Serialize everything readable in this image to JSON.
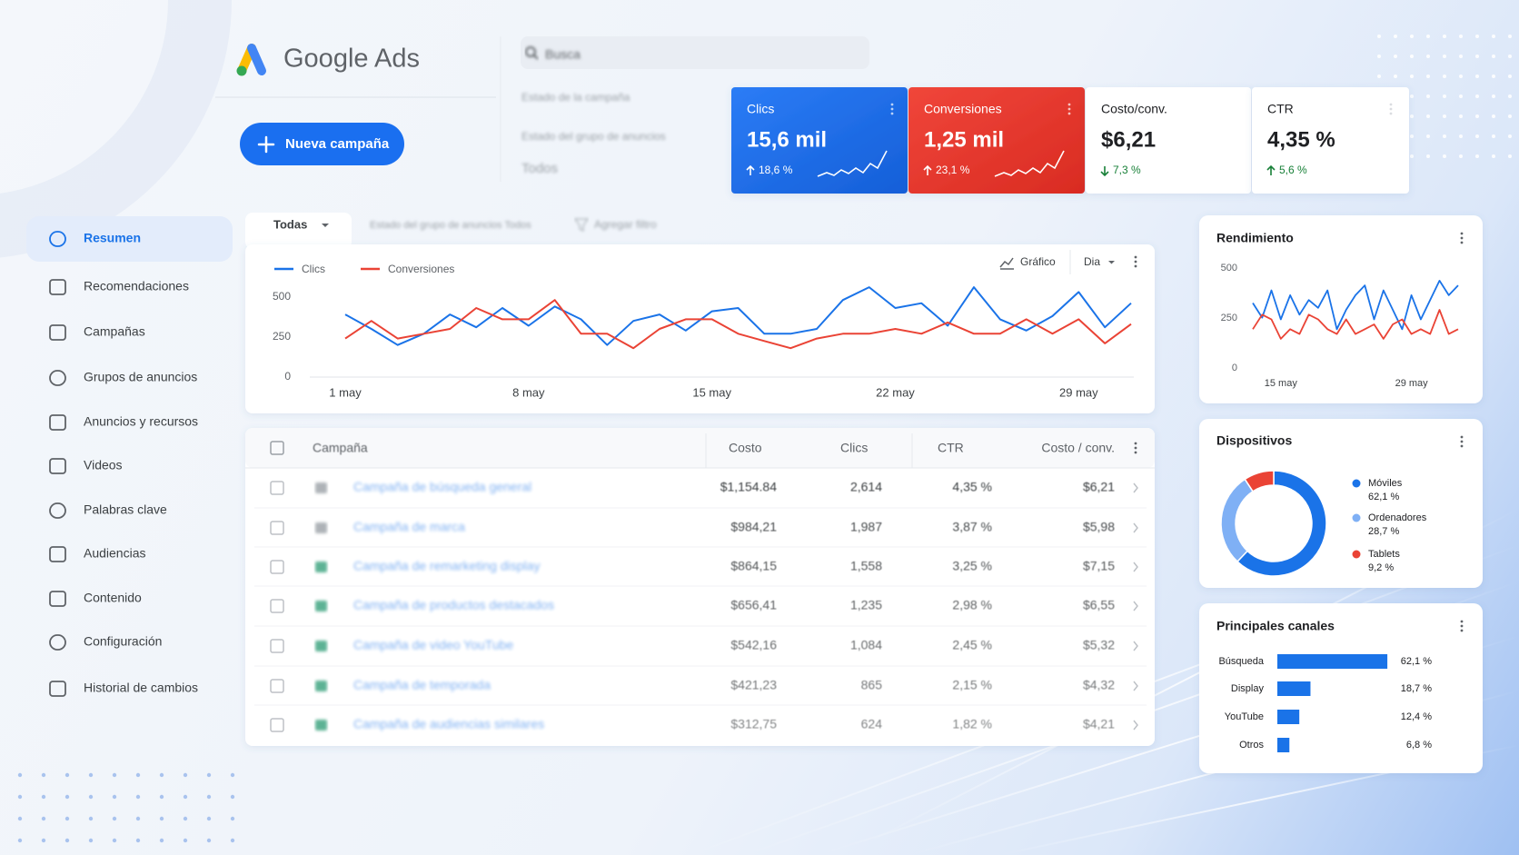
{
  "header": {
    "logo": "Google Ads",
    "search": "Busca",
    "new_campaign": "Nueva campaña"
  },
  "filters": [
    "Estado de la campaña",
    "Estado del grupo de anuncios",
    "Todos"
  ],
  "kpis": [
    {
      "label": "Clics",
      "value": "15,6 mil",
      "change": "18,6 %",
      "direction": "up",
      "color": "#1a6ff0"
    },
    {
      "label": "Conversiones",
      "value": "1,25 mil",
      "change": "23,1 %",
      "direction": "up",
      "color": "#e8382d"
    },
    {
      "label": "Costo/conv.",
      "value": "$6,21",
      "change": "7,3 %",
      "direction": "down",
      "color": "#ffffff"
    },
    {
      "label": "CTR",
      "value": "4,35 %",
      "change": "5,6 %",
      "direction": "up",
      "color": "#ffffff"
    }
  ],
  "nav": {
    "active": 0,
    "items": [
      "Resumen",
      "Recomendaciones",
      "Campañas",
      "Grupos de anuncios",
      "Anuncios y recursos",
      "Videos",
      "Palabras clave",
      "Audiencias",
      "Contenido",
      "Configuración",
      "Historial de cambios"
    ]
  },
  "toolbar": [
    "Todas",
    "Estado del grupo de anuncios Todos",
    "Agregar filtro"
  ],
  "main_chart": {
    "type": "line",
    "controls": [
      "Gráfico",
      "Dia"
    ],
    "categories": [
      "1 may",
      null,
      null,
      null,
      null,
      null,
      null,
      "8 may",
      null,
      null,
      null,
      null,
      null,
      null,
      "15 may",
      null,
      null,
      null,
      null,
      null,
      null,
      "22 may",
      null,
      null,
      null,
      null,
      null,
      null,
      "29 may",
      null,
      null
    ],
    "series": [
      {
        "name": "Clics",
        "color": "#1a73e8",
        "values": [
          390,
          300,
          200,
          270,
          390,
          310,
          430,
          320,
          440,
          360,
          200,
          350,
          390,
          290,
          410,
          430,
          270,
          270,
          300,
          480,
          560,
          430,
          460,
          320,
          560,
          360,
          290,
          380,
          530,
          310,
          460
        ]
      },
      {
        "name": "Conversiones",
        "color": "#ea4335",
        "values": [
          240,
          350,
          240,
          270,
          300,
          430,
          360,
          360,
          480,
          270,
          270,
          180,
          300,
          360,
          360,
          270,
          225,
          180,
          240,
          270,
          270,
          300,
          270,
          340,
          270,
          270,
          360,
          270,
          360,
          210,
          330
        ]
      }
    ],
    "ylim": [
      0,
      600
    ],
    "yticks": [
      0,
      250,
      500
    ]
  },
  "table": {
    "columns": [
      "Campaña",
      "Costo",
      "Clics",
      "CTR",
      "Costo / conv."
    ],
    "rows": [
      [
        "Campaña de búsqueda general",
        "$1,154.84",
        "2,614",
        "4,35 %",
        "$6,21"
      ],
      [
        "Campaña de marca",
        "$984,21",
        "1,987",
        "3,87 %",
        "$5,98"
      ],
      [
        "Campaña de remarketing display",
        "$864,15",
        "1,558",
        "3,25 %",
        "$7,15"
      ],
      [
        "Campaña de productos destacados",
        "$656,41",
        "1,235",
        "2,98 %",
        "$6,55"
      ],
      [
        "Campaña de video YouTube",
        "$542,16",
        "1,084",
        "2,45 %",
        "$5,32"
      ],
      [
        "Campaña de temporada",
        "$421,23",
        "865",
        "2,15 %",
        "$4,32"
      ],
      [
        "Campaña de audiencias similares",
        "$312,75",
        "624",
        "1,82 %",
        "$4,21"
      ]
    ]
  },
  "performance": {
    "title": "Rendimiento",
    "type": "line",
    "categories": [
      null,
      null,
      null,
      "15 may",
      null,
      null,
      null,
      null,
      null,
      null,
      null,
      null,
      null,
      null,
      null,
      null,
      null,
      "29 may",
      null,
      null,
      null,
      null,
      null
    ],
    "series": [
      {
        "color": "#1a73e8",
        "values": [
          325,
          252,
          388,
          243,
          364,
          267,
          340,
          301,
          388,
          194,
          291,
          364,
          413,
          243,
          388,
          291,
          194,
          364,
          243,
          340,
          437,
          364,
          413
        ]
      },
      {
        "color": "#ea4335",
        "values": [
          194,
          267,
          243,
          146,
          194,
          170,
          267,
          243,
          194,
          170,
          243,
          170,
          194,
          218,
          146,
          218,
          243,
          170,
          194,
          170,
          291,
          170,
          194
        ]
      }
    ],
    "ylim": [
      0,
      550
    ],
    "yticks": [
      0,
      250,
      500
    ]
  },
  "devices": {
    "title": "Dispositivos",
    "type": "pie",
    "categories": [
      "Móviles",
      "Ordenadores",
      "Tablets"
    ],
    "values": [
      62.1,
      28.7,
      9.2
    ],
    "value_labels": [
      "62,1 %",
      "28,7 %",
      "9,2 %"
    ],
    "colors": [
      "#1a73e8",
      "#7fb0f5",
      "#ea4335"
    ]
  },
  "channels": {
    "title": "Principales canales",
    "type": "bar",
    "categories": [
      "Búsqueda",
      "Display",
      "YouTube",
      "Otros"
    ],
    "values": [
      62.1,
      18.7,
      12.4,
      6.8
    ],
    "value_labels": [
      "62,1 %",
      "18,7 %",
      "12,4 %",
      "6,8 %"
    ],
    "color": "#1a73e8"
  }
}
